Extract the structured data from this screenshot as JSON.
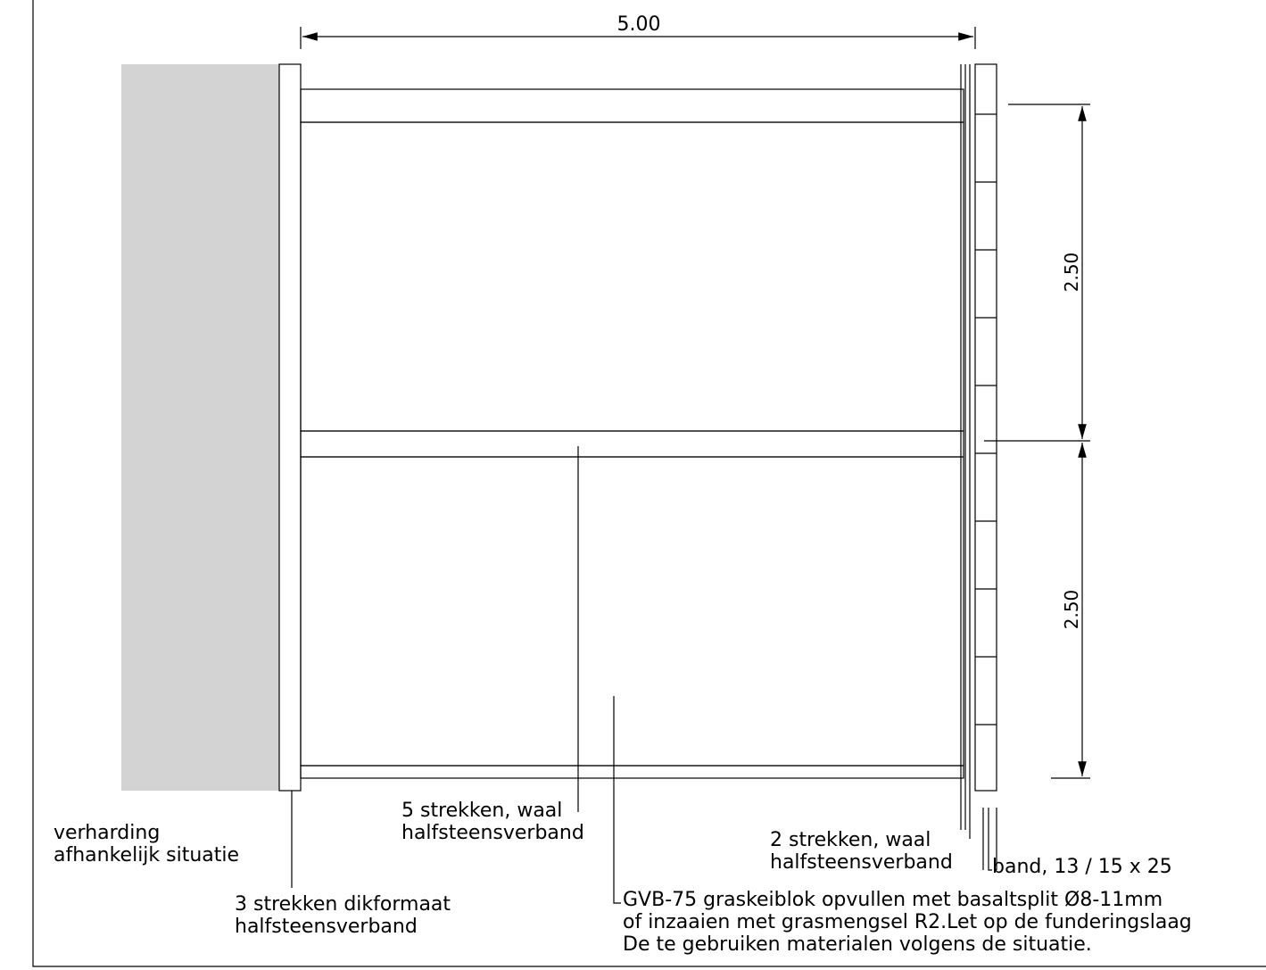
{
  "dimensions": {
    "width": "5.00",
    "heights": [
      "2.50",
      "2.50"
    ]
  },
  "labels": {
    "pavement": [
      "verharding",
      "afhankelijk situatie"
    ],
    "edge_left": [
      "3 strekken dikformaat",
      "halfsteensverband"
    ],
    "middle_band": [
      "5 strekken, waal",
      "halfsteensverband"
    ],
    "infill": [
      "GVB-75 graskeiblok opvullen met basaltsplit Ø8-11mm",
      "of inzaaien met grasmengsel R2.Let op de funderingslaag",
      "De te gebruiken materialen volgens de situatie."
    ],
    "edge_right": [
      "2 strekken, waal",
      "halfsteensverband"
    ],
    "curb": [
      "band, 13 / 15 x 25"
    ]
  }
}
